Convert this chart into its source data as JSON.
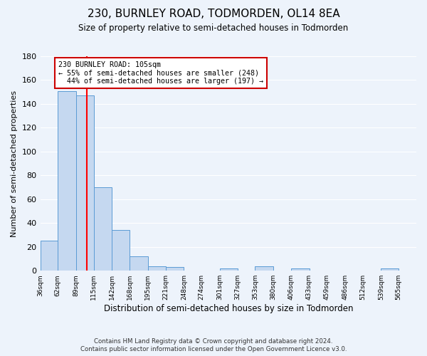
{
  "title": "230, BURNLEY ROAD, TODMORDEN, OL14 8EA",
  "subtitle": "Size of property relative to semi-detached houses in Todmorden",
  "xlabel": "Distribution of semi-detached houses by size in Todmorden",
  "ylabel": "Number of semi-detached properties",
  "bin_labels": [
    "36sqm",
    "62sqm",
    "89sqm",
    "115sqm",
    "142sqm",
    "168sqm",
    "195sqm",
    "221sqm",
    "248sqm",
    "274sqm",
    "301sqm",
    "327sqm",
    "353sqm",
    "380sqm",
    "406sqm",
    "433sqm",
    "459sqm",
    "486sqm",
    "512sqm",
    "539sqm",
    "565sqm"
  ],
  "bin_edges": [
    36,
    62,
    89,
    115,
    142,
    168,
    195,
    221,
    248,
    274,
    301,
    327,
    353,
    380,
    406,
    433,
    459,
    486,
    512,
    539,
    565
  ],
  "bar_heights": [
    25,
    151,
    147,
    70,
    34,
    12,
    4,
    3,
    0,
    0,
    2,
    0,
    4,
    0,
    2,
    0,
    0,
    0,
    0,
    2
  ],
  "bar_color": "#c5d8f0",
  "bar_edge_color": "#5b9bd5",
  "property_value": 105,
  "vline_color": "#ff0000",
  "annotation_text": "230 BURNLEY ROAD: 105sqm\n← 55% of semi-detached houses are smaller (248)\n  44% of semi-detached houses are larger (197) →",
  "annotation_box_facecolor": "#ffffff",
  "annotation_box_edgecolor": "#cc0000",
  "ylim": [
    0,
    180
  ],
  "yticks": [
    0,
    20,
    40,
    60,
    80,
    100,
    120,
    140,
    160,
    180
  ],
  "footer1": "Contains HM Land Registry data © Crown copyright and database right 2024.",
  "footer2": "Contains public sector information licensed under the Open Government Licence v3.0.",
  "background_color": "#edf3fb",
  "grid_color": "#ffffff"
}
